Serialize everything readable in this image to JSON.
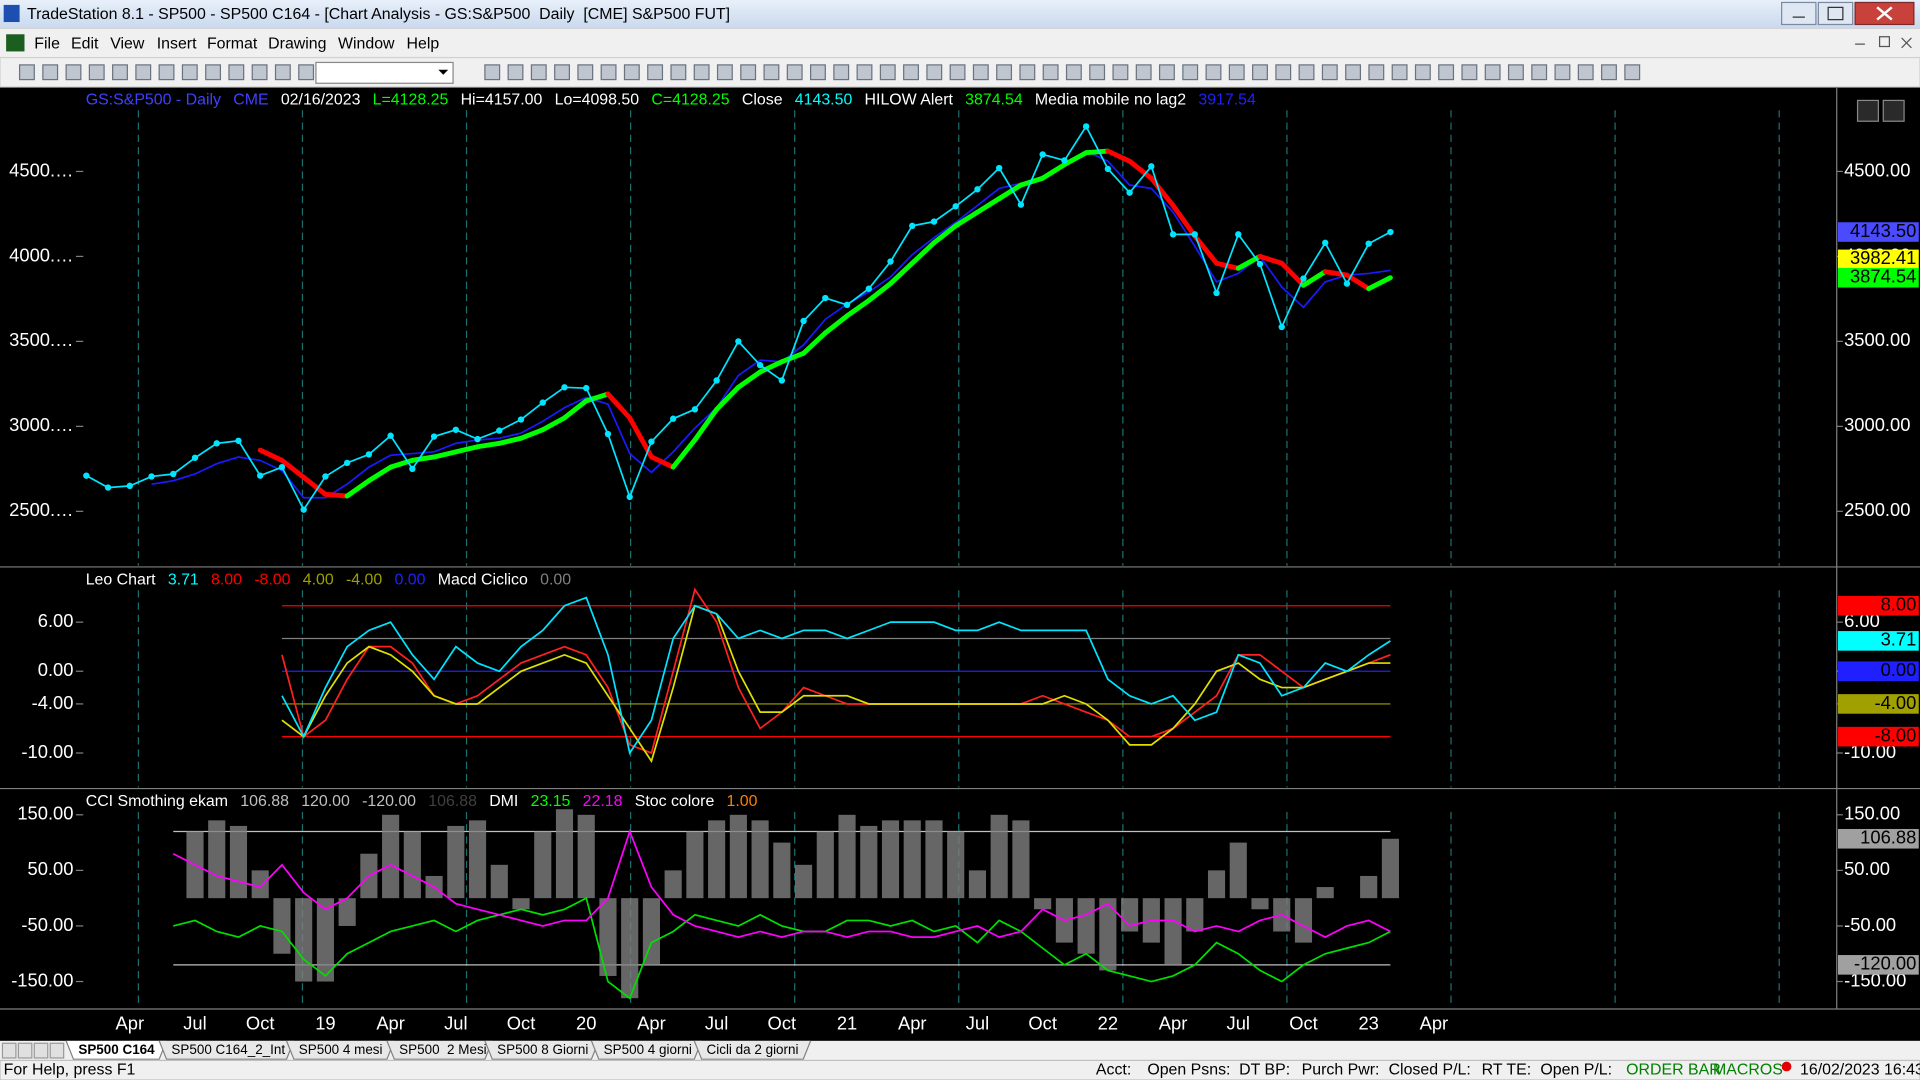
{
  "window": {
    "title": "TradeStation 8.1 - SP500 - SP500 C164 - [Chart Analysis - GS:S&P500  Daily  [CME] S&P500 FUT]",
    "menu": [
      "File",
      "Edit",
      "View",
      "Insert",
      "Format",
      "Drawing",
      "Window",
      "Help"
    ],
    "tabs": [
      "SP500 C164",
      "SP500 C164_2_Int",
      "SP500 4 mesi",
      "SP500  2 Mesi",
      "SP500 8 Giorni",
      "SP500 4 giorni",
      "Cicli da 2 giorni"
    ],
    "status": {
      "help": "For Help, press F1",
      "fields": [
        "Acct:",
        "Open Psns:",
        "DT BP:",
        "Purch Pwr:",
        "Closed P/L:",
        "RT TE:",
        "Open P/L:"
      ],
      "order_bar": "ORDER BAR",
      "macros": "MACROS",
      "datetime": "16/02/2023 16:43"
    }
  },
  "chart_data": [
    {
      "type": "line",
      "legend": [
        {
          "text": "GS:S&P500 - Daily",
          "color": "#4040ff"
        },
        {
          "text": "CME",
          "color": "#4040ff"
        },
        {
          "text": "02/16/2023",
          "color": "#ffffff"
        },
        {
          "text": "L=4128.25",
          "color": "#00ff00"
        },
        {
          "text": "Hi=4157.00",
          "color": "#ffffff"
        },
        {
          "text": "Lo=4098.50",
          "color": "#ffffff"
        },
        {
          "text": "C=4128.25",
          "color": "#00ff00"
        },
        {
          "text": "Close",
          "color": "#ffffff"
        },
        {
          "text": "4143.50",
          "color": "#00ffff"
        },
        {
          "text": "HILOW Alert",
          "color": "#ffffff"
        },
        {
          "text": "3874.54",
          "color": "#00ff00"
        },
        {
          "text": "Media mobile no lag2",
          "color": "#ffffff"
        },
        {
          "text": "3917.54",
          "color": "#2020ff"
        }
      ],
      "categories": [
        null,
        null,
        "Apr",
        null,
        null,
        "Jul",
        null,
        null,
        "Oct",
        null,
        null,
        "19",
        null,
        null,
        "Apr",
        null,
        null,
        "Jul",
        null,
        null,
        "Oct",
        null,
        null,
        "20",
        null,
        null,
        "Apr",
        null,
        null,
        "Jul",
        null,
        null,
        "Oct",
        null,
        null,
        "21",
        null,
        null,
        "Apr",
        null,
        null,
        "Jul",
        null,
        null,
        "Oct",
        null,
        null,
        "22",
        null,
        null,
        "Apr",
        null,
        null,
        "Jul",
        null,
        null,
        "Oct",
        null,
        null,
        "23",
        null,
        null,
        "Apr"
      ],
      "series": [
        {
          "color": "#1a1aff",
          "style": "line",
          "values": [
            null,
            null,
            null,
            2660,
            2680,
            2720,
            2780,
            2820,
            2800,
            2740,
            2580,
            2580,
            2660,
            2760,
            2830,
            2840,
            2850,
            2900,
            2920,
            2930,
            2960,
            3030,
            3110,
            3170,
            3130,
            2840,
            2730,
            2850,
            2990,
            3110,
            3300,
            3390,
            3380,
            3480,
            3630,
            3720,
            3790,
            3880,
            4010,
            4110,
            4200,
            4300,
            4400,
            4430,
            4450,
            4540,
            4620,
            4560,
            4420,
            4400,
            4260,
            4060,
            3850,
            3900,
            4000,
            3820,
            3700,
            3850,
            3890,
            3900,
            3917.54,
            null,
            null
          ]
        },
        {
          "color": "#00ff00",
          "color_down": "#ff0000",
          "style": "updown",
          "values": [
            null,
            null,
            null,
            null,
            null,
            null,
            null,
            null,
            2860,
            2800,
            2700,
            2600,
            2590,
            2680,
            2760,
            2800,
            2820,
            2850,
            2880,
            2900,
            2930,
            2980,
            3050,
            3150,
            3190,
            3050,
            2820,
            2760,
            2920,
            3100,
            3230,
            3320,
            3380,
            3430,
            3550,
            3650,
            3740,
            3840,
            3960,
            4080,
            4180,
            4260,
            4340,
            4420,
            4460,
            4540,
            4610,
            4620,
            4560,
            4460,
            4300,
            4120,
            3960,
            3930,
            4000,
            3960,
            3830,
            3910,
            3890,
            3810,
            3874.54,
            null,
            null
          ]
        },
        {
          "color": "#00e5ff",
          "style": "dots",
          "values": [
            2710,
            2640,
            2650,
            2705,
            2720,
            2815,
            2900,
            2915,
            2710,
            2760,
            2510,
            2705,
            2785,
            2835,
            2945,
            2750,
            2940,
            2980,
            2925,
            2975,
            3040,
            3140,
            3230,
            3225,
            2955,
            2585,
            2910,
            3045,
            3100,
            3270,
            3500,
            3360,
            3270,
            3620,
            3755,
            3715,
            3810,
            3970,
            4180,
            4205,
            4295,
            4395,
            4520,
            4305,
            4600,
            4565,
            4765,
            4515,
            4375,
            4530,
            4130,
            4130,
            3785,
            4130,
            3955,
            3585,
            3870,
            4080,
            3840,
            4075,
            4143.5,
            null,
            null
          ]
        }
      ],
      "ylim": [
        2180,
        4990
      ],
      "yticks": [
        {
          "value": 2500,
          "label": "2500.00"
        },
        {
          "value": 3000,
          "label": "3000.00"
        },
        {
          "value": 3500,
          "label": "3500.00"
        },
        {
          "value": 4000,
          "label": "4000.00"
        },
        {
          "value": 4500,
          "label": "4500.00"
        }
      ],
      "yticks_left": [
        {
          "value": 2500,
          "label": "2500.…"
        },
        {
          "value": 3000,
          "label": "3000.…"
        },
        {
          "value": 3500,
          "label": "3500.…"
        },
        {
          "value": 4000,
          "label": "4000.…"
        },
        {
          "value": 4500,
          "label": "4500.…"
        }
      ],
      "hlines": [],
      "markers": [
        {
          "value": 4143.5,
          "label": "4143.50",
          "color": "#4a4aff"
        },
        {
          "value": 3982.41,
          "label": "3982.41",
          "color": "#ffff00"
        },
        {
          "value": 3874.54,
          "label": "3874.54",
          "color": "#00ff00"
        }
      ]
    },
    {
      "type": "line",
      "legend": [
        {
          "text": "Leo Chart",
          "color": "#ffffff"
        },
        {
          "text": "3.71",
          "color": "#00ffff"
        },
        {
          "text": "8.00",
          "color": "#ff0000"
        },
        {
          "text": "-8.00",
          "color": "#ff0000"
        },
        {
          "text": "4.00",
          "color": "#a0a000"
        },
        {
          "text": "-4.00",
          "color": "#a0a000"
        },
        {
          "text": "0.00",
          "color": "#2020ff"
        },
        {
          "text": "Macd Ciclico",
          "color": "#ffffff"
        },
        {
          "text": "0.00",
          "color": "#808080"
        }
      ],
      "series": [
        {
          "color": "#ff2020",
          "style": "line",
          "values": [
            null,
            null,
            null,
            null,
            null,
            null,
            null,
            null,
            null,
            2,
            -8,
            -6,
            -1,
            3,
            3,
            1,
            -3,
            -4,
            -3,
            -1,
            1,
            2,
            3,
            2,
            -2,
            -9,
            -10,
            0,
            10,
            6,
            -2,
            -7,
            -5,
            -2,
            -3,
            -4,
            -4,
            -4,
            -4,
            -4,
            -4,
            -4,
            -4,
            -4,
            -3,
            -4,
            -5,
            -6,
            -8,
            -8,
            -7,
            -5,
            -3,
            2,
            2,
            0,
            -2,
            -1,
            0,
            1,
            2,
            null,
            null
          ]
        },
        {
          "color": "#e0e000",
          "style": "line",
          "values": [
            null,
            null,
            null,
            null,
            null,
            null,
            null,
            null,
            null,
            -6,
            -8,
            -3,
            1,
            3,
            2,
            0,
            -3,
            -4,
            -4,
            -2,
            0,
            1,
            2,
            1,
            -3,
            -7,
            -11,
            -2,
            8,
            7,
            0,
            -5,
            -5,
            -3,
            -3,
            -3,
            -4,
            -4,
            -4,
            -4,
            -4,
            -4,
            -4,
            -4,
            -4,
            -3,
            -4,
            -6,
            -9,
            -9,
            -7,
            -4,
            0,
            1,
            -1,
            -2,
            -2,
            -1,
            0,
            1,
            1,
            null,
            null
          ]
        },
        {
          "color": "#00e5ff",
          "style": "line",
          "values": [
            null,
            null,
            null,
            null,
            null,
            null,
            null,
            null,
            null,
            -3,
            -8,
            -2,
            3,
            5,
            6,
            2,
            -1,
            3,
            1,
            0,
            3,
            5,
            8,
            9,
            2,
            -10,
            -6,
            4,
            8,
            7,
            4,
            5,
            4,
            5,
            5,
            4,
            5,
            6,
            6,
            6,
            5,
            5,
            6,
            5,
            5,
            5,
            5,
            -1,
            -3,
            -4,
            -3,
            -6,
            -5,
            2,
            1,
            -3,
            -2,
            1,
            0,
            2,
            3.71,
            null,
            null
          ]
        }
      ],
      "ylim": [
        -14.2,
        12.6
      ],
      "yticks": [
        {
          "value": -10,
          "label": "-10.00"
        },
        {
          "value": -4,
          "label": "-4.00"
        },
        {
          "value": 0,
          "label": "0.00"
        },
        {
          "value": 6,
          "label": "6.00"
        }
      ],
      "yticks_left": [
        {
          "value": -10,
          "label": "-10.00"
        },
        {
          "value": -4,
          "label": "-4.00"
        },
        {
          "value": 0,
          "label": "0.00"
        },
        {
          "value": 6,
          "label": "6.00"
        }
      ],
      "hlines": [
        {
          "value": 8,
          "color": "#ff0000"
        },
        {
          "value": 4,
          "color": "#808080"
        },
        {
          "value": 0,
          "color": "#2020ff"
        },
        {
          "value": -4,
          "color": "#a0a000"
        },
        {
          "value": -8,
          "color": "#ff0000"
        }
      ],
      "markers": [
        {
          "value": 8,
          "label": "8.00",
          "color": "#ff0000"
        },
        {
          "value": 3.71,
          "label": "3.71",
          "color": "#00ffff"
        },
        {
          "value": 0,
          "label": "0.00",
          "color": "#2020ff"
        },
        {
          "value": -4,
          "label": "-4.00",
          "color": "#a0a000"
        },
        {
          "value": -8,
          "label": "-8.00",
          "color": "#ff0000"
        }
      ]
    },
    {
      "type": "line",
      "legend": [
        {
          "text": "CCI Smothing ekam",
          "color": "#ffffff"
        },
        {
          "text": "106.88",
          "color": "#c0c0c0"
        },
        {
          "text": "120.00",
          "color": "#c0c0c0"
        },
        {
          "text": "-120.00",
          "color": "#c0c0c0"
        },
        {
          "text": "106.88",
          "color": "#404040"
        },
        {
          "text": "DMI",
          "color": "#ffffff"
        },
        {
          "text": "23.15",
          "color": "#00ff00"
        },
        {
          "text": "22.18",
          "color": "#ff00ff"
        },
        {
          "text": "Stoc colore",
          "color": "#ffffff"
        },
        {
          "text": "1.00",
          "color": "#ff8000"
        }
      ],
      "series": [
        {
          "color": "#808080",
          "style": "bars",
          "values": [
            null,
            null,
            null,
            null,
            0,
            120,
            140,
            130,
            50,
            -100,
            -150,
            -150,
            -50,
            80,
            150,
            120,
            40,
            130,
            140,
            60,
            -20,
            120,
            160,
            150,
            -140,
            -180,
            -120,
            50,
            120,
            140,
            150,
            140,
            100,
            60,
            120,
            150,
            130,
            140,
            140,
            140,
            120,
            50,
            150,
            140,
            -20,
            -80,
            -100,
            -130,
            -60,
            -80,
            -120,
            -60,
            50,
            100,
            -20,
            -60,
            -80,
            20,
            0,
            40,
            106.88,
            null,
            null
          ]
        },
        {
          "color": "#00e000",
          "style": "line",
          "values": [
            null,
            null,
            null,
            null,
            -50,
            -40,
            -60,
            -70,
            -50,
            -60,
            -110,
            -140,
            -100,
            -80,
            -60,
            -50,
            -40,
            -60,
            -40,
            -30,
            -20,
            -30,
            -20,
            0,
            -150,
            -180,
            -80,
            -60,
            -30,
            -40,
            -50,
            -30,
            -50,
            -60,
            -60,
            -40,
            -40,
            -50,
            -40,
            -60,
            -50,
            -80,
            -40,
            -60,
            -90,
            -120,
            -100,
            -130,
            -140,
            -150,
            -140,
            -120,
            -80,
            -100,
            -130,
            -150,
            -120,
            -100,
            -90,
            -80,
            -60,
            null,
            null
          ]
        },
        {
          "color": "#ff00ff",
          "style": "line",
          "values": [
            null,
            null,
            null,
            null,
            80,
            60,
            40,
            30,
            20,
            60,
            10,
            -20,
            0,
            40,
            60,
            40,
            20,
            -10,
            -20,
            -30,
            -40,
            -50,
            -40,
            -40,
            0,
            120,
            20,
            -30,
            -50,
            -60,
            -70,
            -60,
            -70,
            -60,
            -60,
            -70,
            -60,
            -60,
            -70,
            -70,
            -60,
            -50,
            -70,
            -60,
            -20,
            -40,
            -30,
            -10,
            -50,
            -40,
            -40,
            -60,
            -50,
            -60,
            -40,
            -30,
            -50,
            -70,
            -50,
            -40,
            -60,
            null,
            null
          ]
        }
      ],
      "ylim": [
        -195,
        195
      ],
      "yticks": [
        {
          "value": -150,
          "label": "-150.00"
        },
        {
          "value": -50,
          "label": "-50.00"
        },
        {
          "value": 50,
          "label": "50.00"
        },
        {
          "value": 150,
          "label": "150.00"
        }
      ],
      "yticks_left": [
        {
          "value": -150,
          "label": "-150.00"
        },
        {
          "value": -50,
          "label": "-50.00"
        },
        {
          "value": 50,
          "label": "50.00"
        },
        {
          "value": 150,
          "label": "150.00"
        }
      ],
      "hlines": [
        {
          "value": 120,
          "color": "#c0c0c0"
        },
        {
          "value": -120,
          "color": "#c0c0c0"
        }
      ],
      "markers": [
        {
          "value": 106.88,
          "label": "106.88",
          "color": "#a0a0a0"
        },
        {
          "value": -120,
          "label": "-120.00",
          "color": "#a0a0a0"
        }
      ]
    }
  ]
}
